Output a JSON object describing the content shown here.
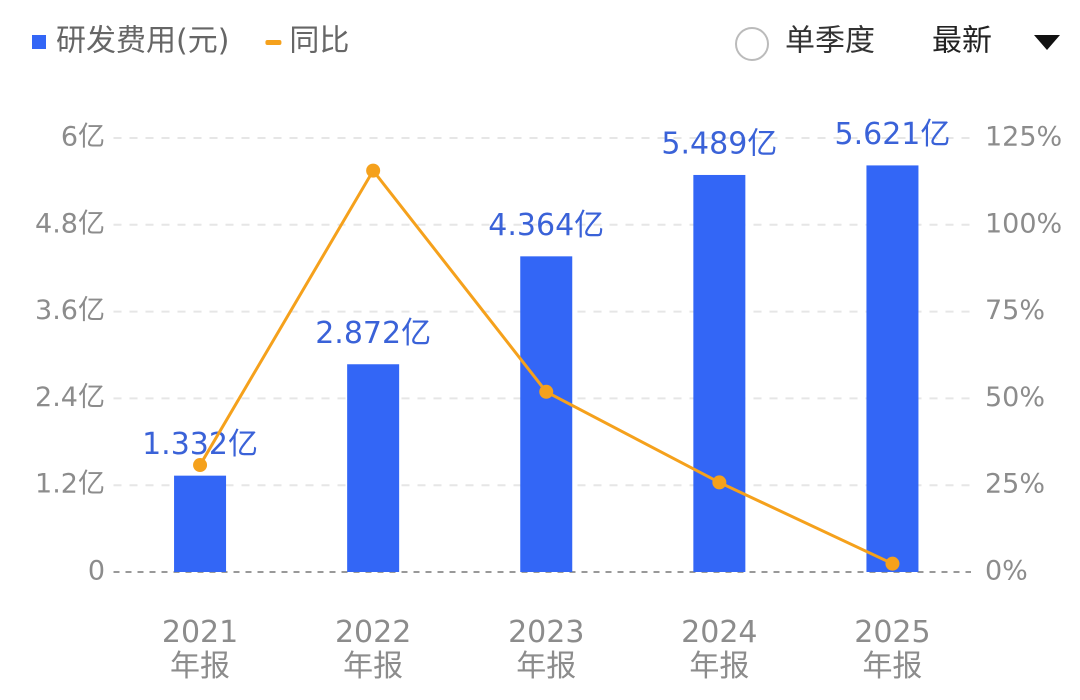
{
  "chart_data": {
    "type": "bar_line",
    "categories": [
      "2021\n年报",
      "2022\n年报",
      "2023\n年报",
      "2024\n年报",
      "2025\n年报"
    ],
    "series": [
      {
        "name": "研发费用(元)",
        "color": "#3366f6",
        "type": "bar",
        "values": [
          1.332,
          2.872,
          4.364,
          5.489,
          5.621
        ],
        "value_labels": [
          "1.332亿",
          "2.872亿",
          "4.364亿",
          "5.489亿",
          "5.621亿"
        ]
      },
      {
        "name": "同比",
        "color": "#f5a11c",
        "type": "line",
        "axis": "y2",
        "values": [
          30.8,
          115.6,
          51.9,
          25.8,
          2.4
        ]
      }
    ],
    "ylim": [
      0,
      6
    ],
    "yticks": [
      0,
      {
        "value": 1.2,
        "label": "1.2亿"
      },
      {
        "value": 2.4,
        "label": "2.4亿"
      },
      {
        "value": 3.6,
        "label": "3.6亿"
      },
      {
        "value": 4.8,
        "label": "4.8亿"
      },
      {
        "value": 6,
        "label": "6亿"
      }
    ],
    "y2lim": [
      0,
      125
    ],
    "y2ticks": [
      {
        "value": 0,
        "label": "0%"
      },
      {
        "value": 25,
        "label": "25%"
      },
      {
        "value": 50,
        "label": "50%"
      },
      {
        "value": 75,
        "label": "75%"
      },
      {
        "value": 100,
        "label": "100%"
      },
      {
        "value": 125,
        "label": "125%"
      }
    ],
    "grid": true,
    "legend": "top-left",
    "controls": {
      "period_option": "单季度",
      "sort_option": "最新"
    }
  }
}
